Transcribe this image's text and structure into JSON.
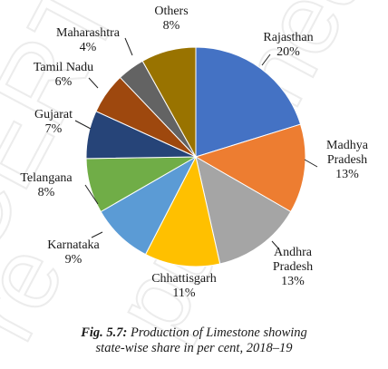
{
  "chart_data": {
    "type": "pie",
    "title": "Production of Limestone showing state-wise share in per cent, 2018–19",
    "figure_number": "Fig. 5.7:",
    "caption_line1": "Production of Limestone showing",
    "caption_line2": "state-wise share in per cent, 2018–19",
    "start": "12 o'clock",
    "direction": "clockwise",
    "slices": [
      {
        "label": "Rajasthan",
        "value": 20,
        "value_text": "20%",
        "color": "#4472C4"
      },
      {
        "label": "Madhya Pradesh",
        "value": 13,
        "value_text": "13%",
        "color": "#ED7D31"
      },
      {
        "label": "Andhra Pradesh",
        "value": 13,
        "value_text": "13%",
        "color": "#A5A5A5"
      },
      {
        "label": "Chhattisgarh",
        "value": 11,
        "value_text": "11%",
        "color": "#FFC000"
      },
      {
        "label": "Karnataka",
        "value": 9,
        "value_text": "9%",
        "color": "#5B9BD5"
      },
      {
        "label": "Telangana",
        "value": 8,
        "value_text": "8%",
        "color": "#70AD47"
      },
      {
        "label": "Gujarat",
        "value": 7,
        "value_text": "7%",
        "color": "#264478"
      },
      {
        "label": "Tamil Nadu",
        "value": 6,
        "value_text": "6%",
        "color": "#9E480E"
      },
      {
        "label": "Maharashtra",
        "value": 4,
        "value_text": "4%",
        "color": "#636363"
      },
      {
        "label": "Others",
        "value": 8,
        "value_text": "8%",
        "color": "#997300"
      }
    ]
  },
  "watermark": {
    "text1": "CERT",
    "text2": "published",
    "text3": "re",
    "color": "#ececec"
  }
}
